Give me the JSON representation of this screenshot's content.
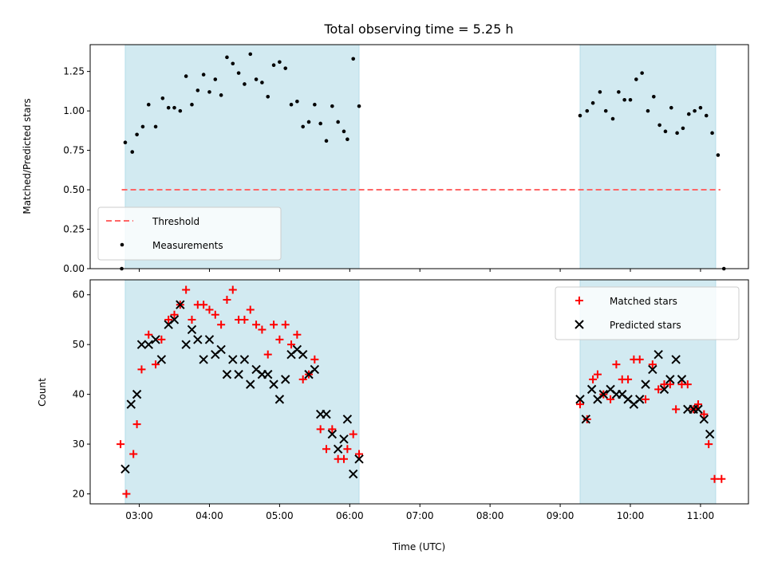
{
  "figure": {
    "title": "Total observing time = 5.25 h"
  },
  "chart_data": [
    {
      "type": "scatter",
      "title": "Total observing time = 5.25 h",
      "xlabel": "",
      "ylabel": "Matched/Predicted stars",
      "xlim": [
        "02:18",
        "11:41"
      ],
      "ylim": [
        0,
        1.42
      ],
      "y_ticks": [
        0.0,
        0.25,
        0.5,
        0.75,
        1.0,
        1.25
      ],
      "y_tick_labels": [
        "0.00",
        "0.25",
        "0.50",
        "0.75",
        "1.00",
        "1.25"
      ],
      "x_tick_labels": [
        "03:00",
        "04:00",
        "05:00",
        "06:00",
        "07:00",
        "08:00",
        "09:00",
        "10:00",
        "11:00"
      ],
      "grid": false,
      "legend_position": "lower-left",
      "shaded_intervals": [
        {
          "start": "02:48",
          "end": "06:08",
          "color": "#add8e6"
        },
        {
          "start": "09:17",
          "end": "11:13",
          "color": "#add8e6"
        }
      ],
      "threshold": {
        "name": "Threshold",
        "value": 0.5,
        "x_start": "02:45",
        "x_end": "11:17",
        "color": "#ff6666",
        "style": "dashed"
      },
      "series": [
        {
          "name": "Measurements",
          "marker": "dot",
          "color": "#000000",
          "points": [
            [
              "02:45",
              0.0
            ],
            [
              "02:48",
              0.8
            ],
            [
              "02:54",
              0.74
            ],
            [
              "02:58",
              0.85
            ],
            [
              "03:03",
              0.9
            ],
            [
              "03:08",
              1.04
            ],
            [
              "03:14",
              0.9
            ],
            [
              "03:20",
              1.08
            ],
            [
              "03:25",
              1.02
            ],
            [
              "03:30",
              1.02
            ],
            [
              "03:35",
              1.0
            ],
            [
              "03:40",
              1.22
            ],
            [
              "03:45",
              1.04
            ],
            [
              "03:50",
              1.13
            ],
            [
              "03:55",
              1.23
            ],
            [
              "04:00",
              1.12
            ],
            [
              "04:05",
              1.2
            ],
            [
              "04:10",
              1.1
            ],
            [
              "04:15",
              1.34
            ],
            [
              "04:20",
              1.3
            ],
            [
              "04:25",
              1.24
            ],
            [
              "04:30",
              1.17
            ],
            [
              "04:35",
              1.36
            ],
            [
              "04:40",
              1.2
            ],
            [
              "04:45",
              1.18
            ],
            [
              "04:50",
              1.09
            ],
            [
              "04:55",
              1.29
            ],
            [
              "05:00",
              1.31
            ],
            [
              "05:05",
              1.27
            ],
            [
              "05:10",
              1.04
            ],
            [
              "05:15",
              1.06
            ],
            [
              "05:20",
              0.9
            ],
            [
              "05:25",
              0.93
            ],
            [
              "05:30",
              1.04
            ],
            [
              "05:35",
              0.92
            ],
            [
              "05:40",
              0.81
            ],
            [
              "05:45",
              1.03
            ],
            [
              "05:50",
              0.93
            ],
            [
              "05:55",
              0.87
            ],
            [
              "05:58",
              0.82
            ],
            [
              "06:03",
              1.33
            ],
            [
              "06:08",
              1.03
            ],
            [
              "09:17",
              0.97
            ],
            [
              "09:23",
              1.0
            ],
            [
              "09:28",
              1.05
            ],
            [
              "09:34",
              1.12
            ],
            [
              "09:39",
              1.0
            ],
            [
              "09:45",
              0.95
            ],
            [
              "09:50",
              1.12
            ],
            [
              "09:55",
              1.07
            ],
            [
              "10:00",
              1.07
            ],
            [
              "10:05",
              1.2
            ],
            [
              "10:10",
              1.24
            ],
            [
              "10:15",
              1.0
            ],
            [
              "10:20",
              1.09
            ],
            [
              "10:25",
              0.91
            ],
            [
              "10:30",
              0.87
            ],
            [
              "10:35",
              1.02
            ],
            [
              "10:40",
              0.86
            ],
            [
              "10:45",
              0.89
            ],
            [
              "10:50",
              0.98
            ],
            [
              "10:55",
              1.0
            ],
            [
              "11:00",
              1.02
            ],
            [
              "11:05",
              0.97
            ],
            [
              "11:10",
              0.86
            ],
            [
              "11:15",
              0.72
            ],
            [
              "11:20",
              0.0
            ]
          ]
        }
      ]
    },
    {
      "type": "scatter",
      "title": "",
      "xlabel": "Time (UTC)",
      "ylabel": "Count",
      "xlim": [
        "02:18",
        "11:41"
      ],
      "ylim": [
        18,
        63
      ],
      "y_ticks": [
        20,
        30,
        40,
        50,
        60
      ],
      "y_tick_labels": [
        "20",
        "30",
        "40",
        "50",
        "60"
      ],
      "x_tick_labels": [
        "03:00",
        "04:00",
        "05:00",
        "06:00",
        "07:00",
        "08:00",
        "09:00",
        "10:00",
        "11:00"
      ],
      "grid": false,
      "legend_position": "upper-right",
      "shaded_intervals": [
        {
          "start": "02:48",
          "end": "06:08",
          "color": "#add8e6"
        },
        {
          "start": "09:17",
          "end": "11:13",
          "color": "#add8e6"
        }
      ],
      "series": [
        {
          "name": "Matched stars",
          "marker": "plus",
          "color": "#ff0000",
          "points": [
            [
              "02:44",
              30
            ],
            [
              "02:49",
              20
            ],
            [
              "02:55",
              28
            ],
            [
              "02:58",
              34
            ],
            [
              "03:02",
              45
            ],
            [
              "03:08",
              52
            ],
            [
              "03:14",
              46
            ],
            [
              "03:19",
              51
            ],
            [
              "03:25",
              55
            ],
            [
              "03:30",
              56
            ],
            [
              "03:35",
              58
            ],
            [
              "03:40",
              61
            ],
            [
              "03:45",
              55
            ],
            [
              "03:50",
              58
            ],
            [
              "03:55",
              58
            ],
            [
              "04:00",
              57
            ],
            [
              "04:05",
              56
            ],
            [
              "04:10",
              54
            ],
            [
              "04:15",
              59
            ],
            [
              "04:20",
              61
            ],
            [
              "04:25",
              55
            ],
            [
              "04:30",
              55
            ],
            [
              "04:35",
              57
            ],
            [
              "04:40",
              54
            ],
            [
              "04:45",
              53
            ],
            [
              "04:50",
              48
            ],
            [
              "04:55",
              54
            ],
            [
              "05:00",
              51
            ],
            [
              "05:05",
              54
            ],
            [
              "05:10",
              50
            ],
            [
              "05:15",
              52
            ],
            [
              "05:20",
              43
            ],
            [
              "05:25",
              44
            ],
            [
              "05:30",
              47
            ],
            [
              "05:35",
              33
            ],
            [
              "05:40",
              29
            ],
            [
              "05:45",
              33
            ],
            [
              "05:50",
              27
            ],
            [
              "05:55",
              27
            ],
            [
              "05:58",
              29
            ],
            [
              "06:03",
              32
            ],
            [
              "06:08",
              28
            ],
            [
              "09:17",
              38
            ],
            [
              "09:23",
              35
            ],
            [
              "09:28",
              43
            ],
            [
              "09:32",
              44
            ],
            [
              "09:37",
              40
            ],
            [
              "09:43",
              39
            ],
            [
              "09:48",
              46
            ],
            [
              "09:53",
              43
            ],
            [
              "09:58",
              43
            ],
            [
              "10:03",
              47
            ],
            [
              "10:08",
              47
            ],
            [
              "10:13",
              39
            ],
            [
              "10:19",
              46
            ],
            [
              "10:24",
              41
            ],
            [
              "10:29",
              42
            ],
            [
              "10:34",
              42
            ],
            [
              "10:39",
              37
            ],
            [
              "10:44",
              42
            ],
            [
              "10:49",
              42
            ],
            [
              "10:54",
              37
            ],
            [
              "10:58",
              38
            ],
            [
              "11:03",
              36
            ],
            [
              "11:07",
              30
            ],
            [
              "11:12",
              23
            ],
            [
              "11:18",
              23
            ]
          ]
        },
        {
          "name": "Predicted stars",
          "marker": "x",
          "color": "#000000",
          "points": [
            [
              "02:48",
              25
            ],
            [
              "02:53",
              38
            ],
            [
              "02:58",
              40
            ],
            [
              "03:02",
              50
            ],
            [
              "03:08",
              50
            ],
            [
              "03:14",
              51
            ],
            [
              "03:19",
              47
            ],
            [
              "03:25",
              54
            ],
            [
              "03:30",
              55
            ],
            [
              "03:35",
              58
            ],
            [
              "03:40",
              50
            ],
            [
              "03:45",
              53
            ],
            [
              "03:50",
              51
            ],
            [
              "03:55",
              47
            ],
            [
              "04:00",
              51
            ],
            [
              "04:05",
              48
            ],
            [
              "04:10",
              49
            ],
            [
              "04:15",
              44
            ],
            [
              "04:20",
              47
            ],
            [
              "04:25",
              44
            ],
            [
              "04:30",
              47
            ],
            [
              "04:35",
              42
            ],
            [
              "04:40",
              45
            ],
            [
              "04:45",
              44
            ],
            [
              "04:50",
              44
            ],
            [
              "04:55",
              42
            ],
            [
              "05:00",
              39
            ],
            [
              "05:05",
              43
            ],
            [
              "05:10",
              48
            ],
            [
              "05:15",
              49
            ],
            [
              "05:20",
              48
            ],
            [
              "05:25",
              44
            ],
            [
              "05:30",
              45
            ],
            [
              "05:35",
              36
            ],
            [
              "05:40",
              36
            ],
            [
              "05:45",
              32
            ],
            [
              "05:50",
              29
            ],
            [
              "05:55",
              31
            ],
            [
              "05:58",
              35
            ],
            [
              "06:03",
              24
            ],
            [
              "06:08",
              27
            ],
            [
              "09:17",
              39
            ],
            [
              "09:22",
              35
            ],
            [
              "09:27",
              41
            ],
            [
              "09:32",
              39
            ],
            [
              "09:37",
              40
            ],
            [
              "09:43",
              41
            ],
            [
              "09:48",
              40
            ],
            [
              "09:53",
              40
            ],
            [
              "09:58",
              39
            ],
            [
              "10:03",
              38
            ],
            [
              "10:08",
              39
            ],
            [
              "10:13",
              42
            ],
            [
              "10:19",
              45
            ],
            [
              "10:24",
              48
            ],
            [
              "10:29",
              41
            ],
            [
              "10:34",
              43
            ],
            [
              "10:39",
              47
            ],
            [
              "10:44",
              43
            ],
            [
              "10:49",
              37
            ],
            [
              "10:54",
              37
            ],
            [
              "10:58",
              37
            ],
            [
              "11:03",
              35
            ],
            [
              "11:08",
              32
            ]
          ]
        }
      ]
    }
  ]
}
